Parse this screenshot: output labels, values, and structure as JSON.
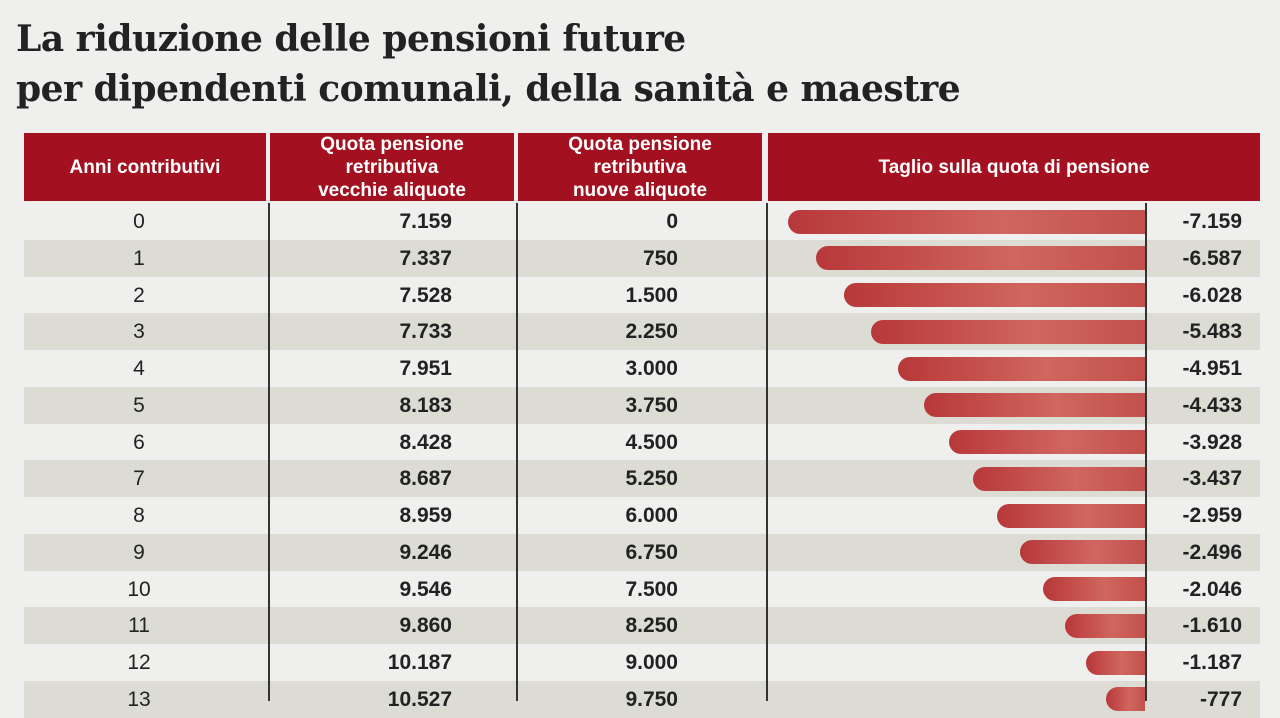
{
  "title": [
    "La riduzione delle pensioni future",
    "per dipendenti comunali, della sanità e maestre"
  ],
  "table": {
    "headers": [
      [
        "Anni contributivi"
      ],
      [
        "Quota pensione",
        "retributiva",
        "vecchie aliquote"
      ],
      [
        "Quota pensione",
        "retributiva",
        "nuove aliquote"
      ],
      [
        "Taglio sulla quota di pensione"
      ]
    ],
    "rows": [
      [
        "0",
        "7.159",
        "0",
        {
          "value": -7159,
          "label": "-7.159"
        }
      ],
      [
        "1",
        "7.337",
        "750",
        {
          "value": -6587,
          "label": "-6.587"
        }
      ],
      [
        "2",
        "7.528",
        "1.500",
        {
          "value": -6028,
          "label": "-6.028"
        }
      ],
      [
        "3",
        "7.733",
        "2.250",
        {
          "value": -5483,
          "label": "-5.483"
        }
      ],
      [
        "4",
        "7.951",
        "3.000",
        {
          "value": -4951,
          "label": "-4.951"
        }
      ],
      [
        "5",
        "8.183",
        "3.750",
        {
          "value": -4433,
          "label": "-4.433"
        }
      ],
      [
        "6",
        "8.428",
        "4.500",
        {
          "value": -3928,
          "label": "-3.928"
        }
      ],
      [
        "7",
        "8.687",
        "5.250",
        {
          "value": -3437,
          "label": "-3.437"
        }
      ],
      [
        "8",
        "8.959",
        "6.000",
        {
          "value": -2959,
          "label": "-2.959"
        }
      ],
      [
        "9",
        "9.246",
        "6.750",
        {
          "value": -2496,
          "label": "-2.496"
        }
      ],
      [
        "10",
        "9.546",
        "7.500",
        {
          "value": -2046,
          "label": "-2.046"
        }
      ],
      [
        "11",
        "9.860",
        "8.250",
        {
          "value": -1610,
          "label": "-1.610"
        }
      ],
      [
        "12",
        "10.187",
        "9.000",
        {
          "value": -1187,
          "label": "-1.187"
        }
      ],
      [
        "13",
        "10.527",
        "9.750",
        {
          "value": -777,
          "label": "-777"
        }
      ]
    ],
    "bar_xlim": [
      -7550,
      0
    ]
  }
}
